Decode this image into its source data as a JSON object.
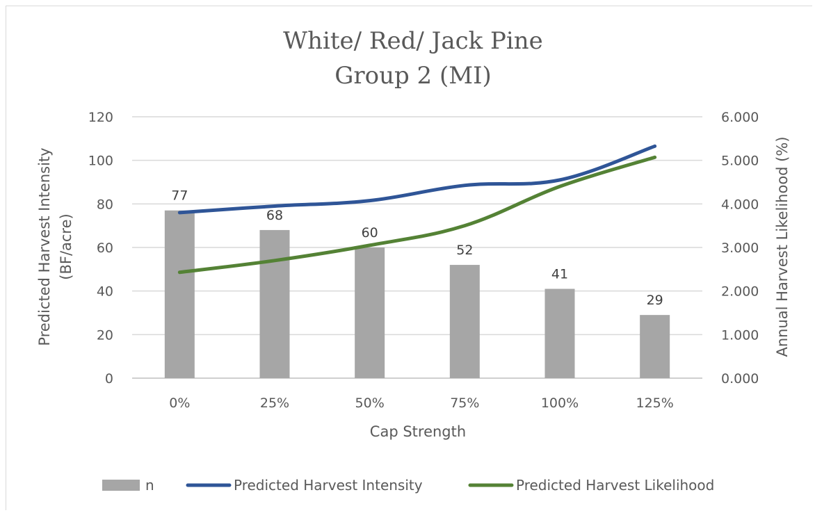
{
  "chart_data": {
    "type": "bar",
    "title": [
      "White/ Red/ Jack Pine",
      "Group 2 (MI)"
    ],
    "xlabel": "Cap Strength",
    "ylabel_left": [
      "Predicted Harvest Intensity",
      "(BF/acre)"
    ],
    "ylabel_right": "Annual Harvest Likelihood (%)",
    "categories": [
      "0%",
      "25%",
      "50%",
      "75%",
      "100%",
      "125%"
    ],
    "ylim_left": [
      0,
      120
    ],
    "ylim_right": [
      0,
      6
    ],
    "yticks_left": [
      "0",
      "20",
      "40",
      "60",
      "80",
      "100",
      "120"
    ],
    "yticks_right": [
      "0.000",
      "1.000",
      "2.000",
      "3.000",
      "4.000",
      "5.000",
      "6.000"
    ],
    "grid": true,
    "legend_position": "bottom",
    "series": [
      {
        "name": "n",
        "kind": "bar",
        "axis": "left",
        "color": "#a6a6a6",
        "values": [
          77,
          68,
          60,
          52,
          41,
          29
        ],
        "labels": [
          "77",
          "68",
          "60",
          "52",
          "41",
          "29"
        ]
      },
      {
        "name": "Predicted Harvest Intensity",
        "kind": "line",
        "axis": "left",
        "color": "#2f5597",
        "values": [
          76,
          79,
          81.5,
          88.5,
          91,
          106.5
        ]
      },
      {
        "name": "Predicted Harvest Likelihood",
        "kind": "line",
        "axis": "right",
        "color": "#548235",
        "values": [
          2.43,
          2.7,
          3.05,
          3.5,
          4.4,
          5.07
        ]
      }
    ]
  }
}
